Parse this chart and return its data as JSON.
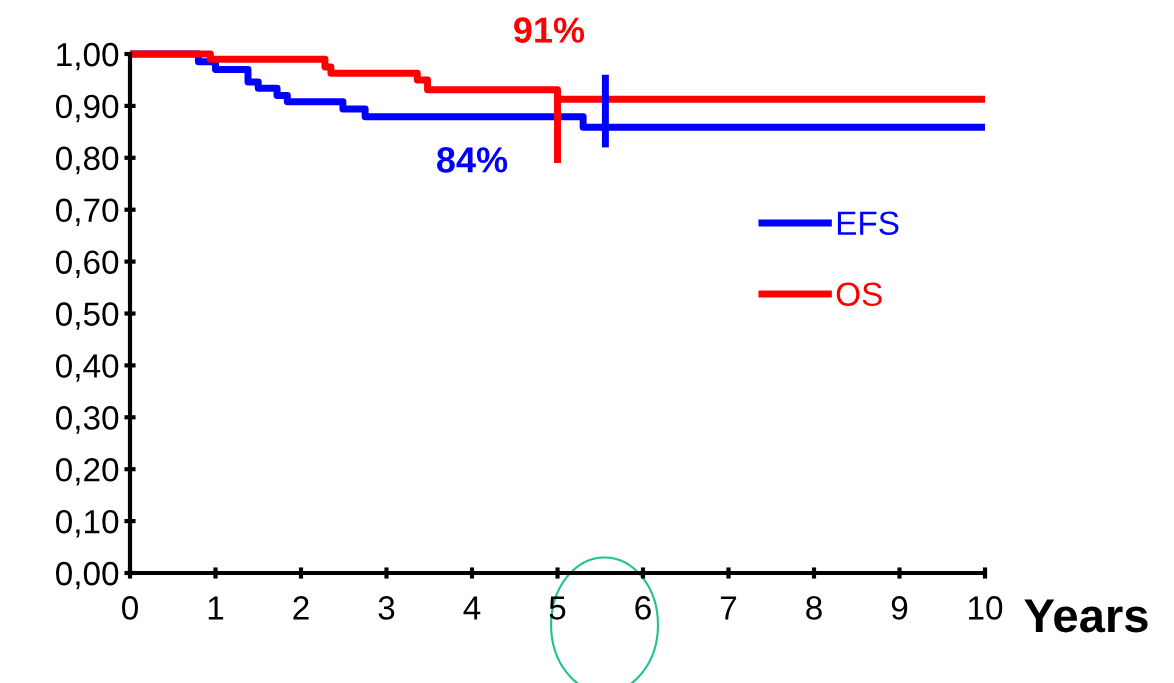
{
  "chart_data": {
    "type": "step",
    "xlabel": "Years",
    "series": [
      {
        "name": "EFS",
        "color": "#0000ff",
        "x": [
          0,
          0.8,
          1.0,
          1.38,
          1.5,
          1.72,
          1.84,
          2.49,
          2.75,
          5.3,
          10
        ],
        "values": [
          1.0,
          0.985,
          0.97,
          0.946,
          0.934,
          0.92,
          0.908,
          0.894,
          0.879,
          0.859,
          0.859
        ]
      },
      {
        "name": "OS",
        "color": "#ff0000",
        "x": [
          0,
          0.94,
          2.28,
          2.35,
          3.36,
          3.48,
          5.0,
          10
        ],
        "values": [
          1.0,
          0.99,
          0.975,
          0.963,
          0.95,
          0.931,
          0.913,
          0.913
        ]
      },
      {
        "type": "line",
        "color": "#0000ff",
        "x": [
          5.56,
          5.56
        ],
        "values": [
          0.96,
          0.82
        ]
      },
      {
        "type": "line",
        "color": "#ff0000",
        "x": [
          5.0,
          5.0
        ],
        "values": [
          0.93,
          0.79
        ]
      }
    ],
    "annotations": [
      "84%",
      "91%"
    ],
    "xlim": [
      0,
      10
    ],
    "xticks": [
      0,
      1,
      2,
      3,
      4,
      5,
      6,
      7,
      8,
      9,
      10
    ],
    "ylim": [
      0,
      1.0
    ],
    "yticks": [
      {
        "value": 0,
        "label": "0,00"
      },
      {
        "value": 0.1,
        "label": "0,10"
      },
      {
        "value": 0.2,
        "label": "0,20"
      },
      {
        "value": 0.3,
        "label": "0,30"
      },
      {
        "value": 0.4,
        "label": "0,40"
      },
      {
        "value": 0.5,
        "label": "0,50"
      },
      {
        "value": 0.6,
        "label": "0,60"
      },
      {
        "value": 0.7,
        "label": "0,70"
      },
      {
        "value": 0.8,
        "label": "0,80"
      },
      {
        "value": 0.9,
        "label": "0,90"
      },
      {
        "value": 1.0,
        "label": "1,00"
      }
    ],
    "grid": false,
    "legend": "right"
  }
}
